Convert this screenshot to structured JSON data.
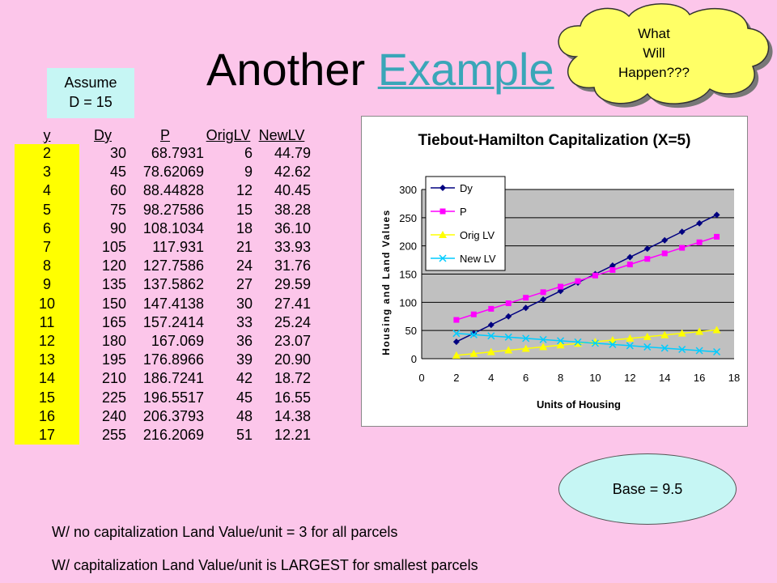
{
  "title": {
    "prefix": "Another ",
    "link": "Example"
  },
  "assume": {
    "line1": "Assume",
    "line2": "D = 15"
  },
  "cloud": {
    "line1": "What",
    "line2": "Will",
    "line3": "Happen???"
  },
  "table": {
    "headers": [
      "y",
      "Dy",
      "P",
      "OrigLV",
      "NewLV"
    ],
    "rows": [
      [
        "2",
        "30",
        "68.7931",
        "6",
        "44.79"
      ],
      [
        "3",
        "45",
        "78.62069",
        "9",
        "42.62"
      ],
      [
        "4",
        "60",
        "88.44828",
        "12",
        "40.45"
      ],
      [
        "5",
        "75",
        "98.27586",
        "15",
        "38.28"
      ],
      [
        "6",
        "90",
        "108.1034",
        "18",
        "36.10"
      ],
      [
        "7",
        "105",
        "117.931",
        "21",
        "33.93"
      ],
      [
        "8",
        "120",
        "127.7586",
        "24",
        "31.76"
      ],
      [
        "9",
        "135",
        "137.5862",
        "27",
        "29.59"
      ],
      [
        "10",
        "150",
        "147.4138",
        "30",
        "27.41"
      ],
      [
        "11",
        "165",
        "157.2414",
        "33",
        "25.24"
      ],
      [
        "12",
        "180",
        "167.069",
        "36",
        "23.07"
      ],
      [
        "13",
        "195",
        "176.8966",
        "39",
        "20.90"
      ],
      [
        "14",
        "210",
        "186.7241",
        "42",
        "18.72"
      ],
      [
        "15",
        "225",
        "196.5517",
        "45",
        "16.55"
      ],
      [
        "16",
        "240",
        "206.3793",
        "48",
        "14.38"
      ],
      [
        "17",
        "255",
        "216.2069",
        "51",
        "12.21"
      ]
    ]
  },
  "base_label": "Base = 9.5",
  "notes": {
    "line1": "W/ no capitalization Land Value/unit = 3 for all parcels",
    "line2": "W/ capitalization Land Value/unit is LARGEST for smallest parcels"
  },
  "chart_data": {
    "type": "line",
    "title": "Tiebout-Hamilton Capitalization (X=5)",
    "xlabel": "Units of Housing",
    "ylabel": "Housing and Land Values",
    "xlim": [
      0,
      18
    ],
    "ylim": [
      0,
      300
    ],
    "xticks": [
      0,
      2,
      4,
      6,
      8,
      10,
      12,
      14,
      16,
      18
    ],
    "yticks": [
      0,
      50,
      100,
      150,
      200,
      250,
      300
    ],
    "grid": true,
    "legend": "top-left",
    "plot_background": "#c0c0c0",
    "x": [
      2,
      3,
      4,
      5,
      6,
      7,
      8,
      9,
      10,
      11,
      12,
      13,
      14,
      15,
      16,
      17
    ],
    "series": [
      {
        "name": "Dy",
        "color": "#000080",
        "marker": "diamond",
        "values": [
          30,
          45,
          60,
          75,
          90,
          105,
          120,
          135,
          150,
          165,
          180,
          195,
          210,
          225,
          240,
          255
        ]
      },
      {
        "name": "P",
        "color": "#ff00ff",
        "marker": "square",
        "values": [
          68.79,
          78.62,
          88.45,
          98.28,
          108.1,
          117.93,
          127.76,
          137.59,
          147.41,
          157.24,
          167.07,
          176.9,
          186.72,
          196.55,
          206.38,
          216.21
        ]
      },
      {
        "name": "Orig LV",
        "color": "#ffff00",
        "marker": "triangle",
        "values": [
          6,
          9,
          12,
          15,
          18,
          21,
          24,
          27,
          30,
          33,
          36,
          39,
          42,
          45,
          48,
          51
        ]
      },
      {
        "name": "New  LV",
        "color": "#00ccff",
        "marker": "x",
        "values": [
          44.79,
          42.62,
          40.45,
          38.28,
          36.1,
          33.93,
          31.76,
          29.59,
          27.41,
          25.24,
          23.07,
          20.9,
          18.72,
          16.55,
          14.38,
          12.21
        ]
      }
    ]
  }
}
